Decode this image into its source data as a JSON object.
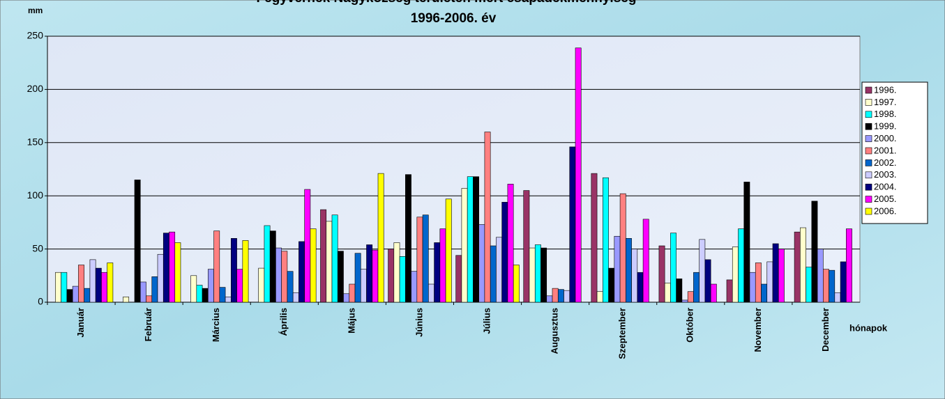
{
  "chart_data": {
    "type": "bar",
    "title": "Fegyvernek Nagyközség területén mért csapadékmennyiség",
    "subtitle": "1996-2006. év",
    "y_label": "mm",
    "x_label": "hónapok",
    "categories": [
      "Január",
      "Február",
      "Március",
      "Április",
      "Május",
      "Június",
      "Július",
      "Augusztus",
      "Szeptember",
      "Október",
      "November",
      "December"
    ],
    "series": [
      {
        "name": "1996.",
        "color": "#993366",
        "values": [
          0,
          0,
          0,
          0,
          87,
          50,
          44,
          105,
          121,
          53,
          21,
          66
        ]
      },
      {
        "name": "1997.",
        "color": "#FFFFCC",
        "values": [
          28,
          5,
          25,
          32,
          76,
          56,
          107,
          51,
          10,
          18,
          52,
          70
        ]
      },
      {
        "name": "1998.",
        "color": "#00FFFF",
        "values": [
          28,
          0,
          16,
          72,
          82,
          43,
          118,
          54,
          117,
          65,
          69,
          33
        ]
      },
      {
        "name": "1999.",
        "color": "#000000",
        "values": [
          12,
          115,
          13,
          67,
          48,
          120,
          118,
          51,
          32,
          22,
          113,
          95
        ]
      },
      {
        "name": "2000.",
        "color": "#9999FF",
        "values": [
          15,
          19,
          31,
          51,
          8,
          29,
          73,
          6,
          62,
          2,
          28,
          50
        ]
      },
      {
        "name": "2001.",
        "color": "#FF8080",
        "values": [
          35,
          6,
          67,
          48,
          17,
          80,
          160,
          13,
          102,
          10,
          37,
          31
        ]
      },
      {
        "name": "2002.",
        "color": "#0066CC",
        "values": [
          13,
          24,
          14,
          29,
          46,
          82,
          53,
          12,
          60,
          28,
          17,
          30
        ]
      },
      {
        "name": "2003.",
        "color": "#CCCCFF",
        "values": [
          40,
          45,
          5,
          9,
          31,
          17,
          61,
          11,
          50,
          59,
          38,
          9
        ]
      },
      {
        "name": "2004.",
        "color": "#000080",
        "values": [
          32,
          65,
          60,
          57,
          54,
          56,
          94,
          146,
          28,
          40,
          55,
          38
        ]
      },
      {
        "name": "2005.",
        "color": "#FF00FF",
        "values": [
          28,
          66,
          31,
          106,
          49,
          69,
          111,
          239,
          78,
          17,
          50,
          69
        ]
      },
      {
        "name": "2006.",
        "color": "#FFFF00",
        "values": [
          37,
          56,
          58,
          69,
          121,
          97,
          35,
          0,
          0,
          0,
          0,
          0
        ]
      }
    ],
    "ylim": [
      0,
      250
    ],
    "yticks": [
      0,
      50,
      100,
      150,
      200,
      250
    ],
    "grid": true
  }
}
